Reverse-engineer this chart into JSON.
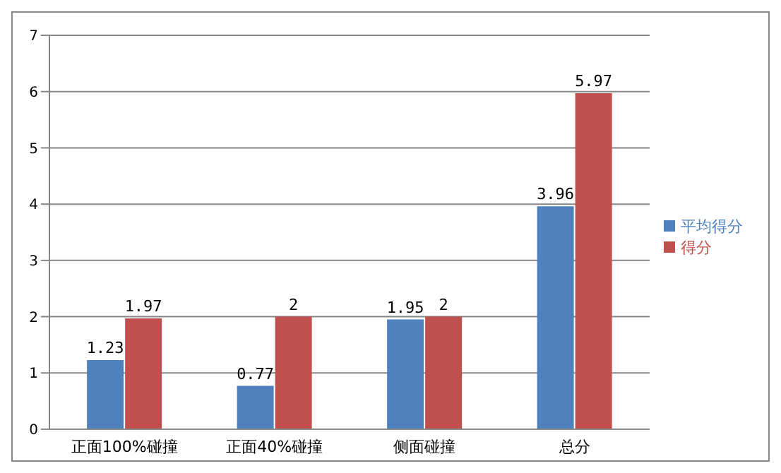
{
  "chart_data": {
    "type": "bar",
    "categories": [
      "正面100%碰撞",
      "正面40%碰撞",
      "侧面碰撞",
      "总分"
    ],
    "series": [
      {
        "name": "平均得分",
        "color": "#4f81bd",
        "values": [
          1.23,
          0.77,
          1.95,
          3.96
        ]
      },
      {
        "name": "得分",
        "color": "#c0504d",
        "values": [
          1.97,
          2,
          2,
          5.97
        ]
      }
    ],
    "ylim": [
      0,
      7
    ],
    "yticks": [
      0,
      1,
      2,
      3,
      4,
      5,
      6,
      7
    ],
    "grid": "y",
    "legend": "right",
    "data_labels": true
  }
}
